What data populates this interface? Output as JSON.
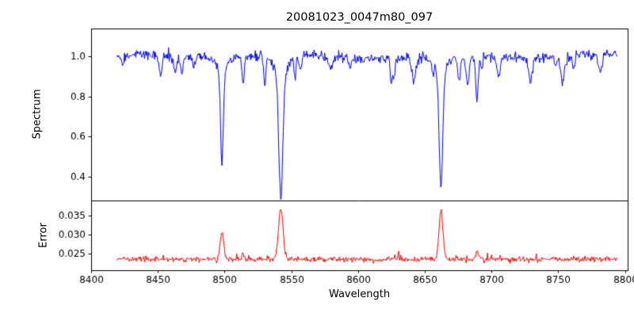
{
  "chart_data": {
    "type": "line",
    "title": "20081023_0047m80_097",
    "xlabel": "Wavelength",
    "background": "#ffffff",
    "axis_color": "#000000",
    "xlim": [
      8400,
      8802
    ],
    "xticks": [
      8400,
      8450,
      8500,
      8550,
      8600,
      8650,
      8700,
      8750,
      8800
    ],
    "xtick_labels": [
      "8400",
      "8450",
      "8500",
      "8550",
      "8600",
      "8650",
      "8700",
      "8750",
      "8800"
    ],
    "x_range": [
      8419,
      8794
    ],
    "x_step": 0.5,
    "seed": 7,
    "panels": [
      {
        "ylabel": "Spectrum",
        "line_color": "#0000ff",
        "ylim": [
          0.28,
          1.14
        ],
        "yticks": [
          0.4,
          0.6,
          0.8,
          1.0
        ],
        "ytick_labels": [
          "0.4",
          "0.6",
          "0.8",
          "1.0"
        ],
        "continuum": 1.0,
        "noise_sigma": 0.013,
        "absorption_lines": [
          {
            "center": 8498.0,
            "depth": 0.46,
            "width": 1.1,
            "wing_depth": 0.06,
            "wing_width": 4.0
          },
          {
            "center": 8542.1,
            "depth": 0.63,
            "width": 1.5,
            "wing_depth": 0.1,
            "wing_width": 5.0
          },
          {
            "center": 8662.1,
            "depth": 0.58,
            "width": 1.3,
            "wing_depth": 0.08,
            "wing_width": 4.5
          },
          {
            "center": 8689.0,
            "depth": 0.21,
            "width": 1.0
          },
          {
            "center": 8514.0,
            "depth": 0.14,
            "width": 0.9
          },
          {
            "center": 8468.0,
            "depth": 0.1,
            "width": 0.9
          }
        ],
        "minor_line_count": 26,
        "minor_depth_range": [
          0.03,
          0.13
        ],
        "minor_width_range": [
          0.6,
          1.5
        ]
      },
      {
        "ylabel": "Error",
        "line_color": "#ff0000",
        "ylim": [
          0.0206,
          0.039
        ],
        "yticks": [
          0.025,
          0.03,
          0.035
        ],
        "ytick_labels": [
          "0.025",
          "0.030",
          "0.035"
        ],
        "baseline": 0.0235,
        "noise_sigma": 0.00035,
        "peaks": [
          {
            "center": 8498.0,
            "amp": 0.0075,
            "width": 1.3
          },
          {
            "center": 8542.1,
            "amp": 0.0135,
            "width": 1.7
          },
          {
            "center": 8662.1,
            "amp": 0.0125,
            "width": 1.5
          },
          {
            "center": 8689.0,
            "amp": 0.0018,
            "width": 1.1
          },
          {
            "center": 8514.0,
            "amp": 0.0012,
            "width": 1.0
          }
        ]
      }
    ]
  }
}
